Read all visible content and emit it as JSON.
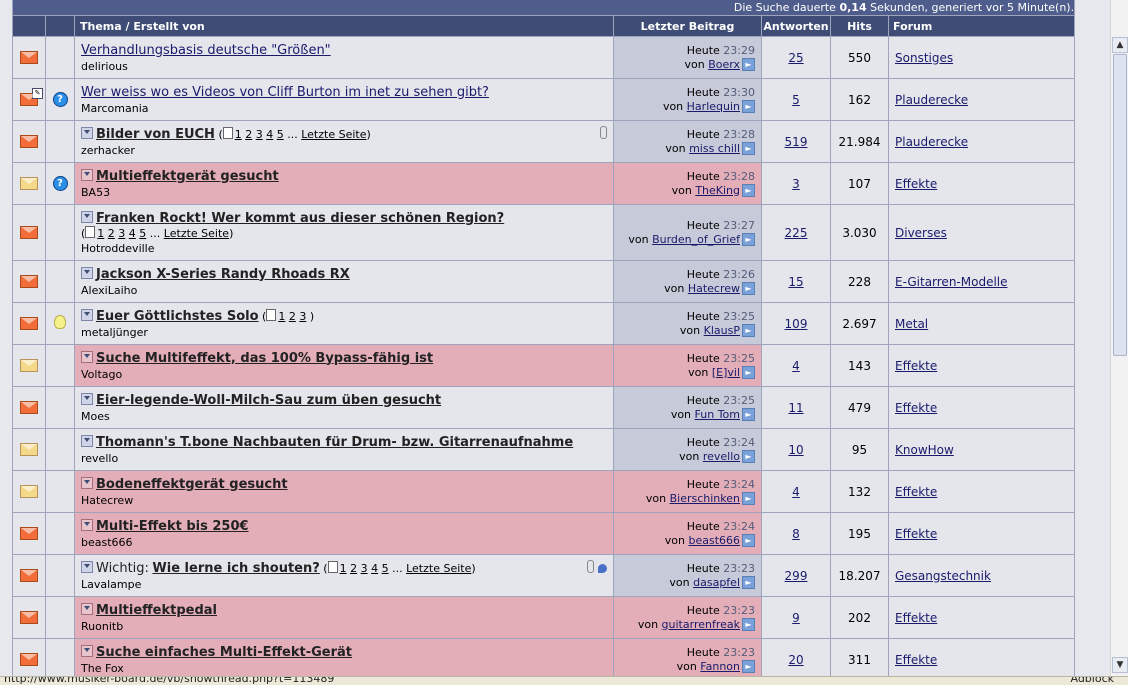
{
  "top_notice": {
    "pre": "Die Suche dauerte",
    "seconds": "0,14",
    "post": "Sekunden, generiert vor 5 Minute(n)."
  },
  "headers": {
    "topic": "Thema / Erstellt von",
    "last_post": "Letzter Beitrag",
    "replies": "Antworten",
    "hits": "Hits",
    "forum": "Forum"
  },
  "last_post_by_prefix": "von",
  "sticky_prefix": "Wichtig:",
  "threads": [
    {
      "icon": "new",
      "flag": "",
      "title": "Verhandlungsbasis deutsche \"Größen\"",
      "bold": false,
      "author": "delirious",
      "pages": [],
      "last_page": "",
      "last_day": "Heute",
      "last_time": "23:29",
      "last_user": "Boerx",
      "replies": "25",
      "hits": "550",
      "forum": "Sonstiges",
      "mod": false
    },
    {
      "icon": "new-edited",
      "flag": "question",
      "title": "Wer weiss wo es Videos von Cliff Burton im inet zu sehen gibt?",
      "bold": false,
      "author": "Marcomania",
      "pages": [],
      "last_page": "",
      "last_day": "Heute",
      "last_time": "23:30",
      "last_user": "Harlequin",
      "replies": "5",
      "hits": "162",
      "forum": "Plauderecke",
      "mod": false
    },
    {
      "icon": "new",
      "flag": "",
      "title": "Bilder von EUCH",
      "bold": true,
      "author": "zerhacker",
      "pages": [
        "1",
        "2",
        "3",
        "4",
        "5"
      ],
      "last_page": "Letzte Seite",
      "last_day": "Heute",
      "last_time": "23:28",
      "last_user": "miss chill",
      "replies": "519",
      "hits": "21.984",
      "forum": "Plauderecke",
      "mod": false,
      "attach": true
    },
    {
      "icon": "read",
      "flag": "question",
      "title": "Multieffektgerät gesucht",
      "bold": true,
      "author": "BA53",
      "pages": [],
      "last_page": "",
      "last_day": "Heute",
      "last_time": "23:28",
      "last_user": "TheKing",
      "replies": "3",
      "hits": "107",
      "forum": "Effekte",
      "mod": true
    },
    {
      "icon": "new",
      "flag": "",
      "title": "Franken Rockt! Wer kommt aus dieser schönen Region?",
      "bold": true,
      "author": "Hotroddeville",
      "pages": [
        "1",
        "2",
        "3",
        "4",
        "5"
      ],
      "last_page": "Letzte Seite",
      "last_day": "Heute",
      "last_time": "23:27",
      "last_user": "Burden_of_Grief",
      "replies": "225",
      "hits": "3.030",
      "forum": "Diverses",
      "mod": false,
      "two_line": true
    },
    {
      "icon": "new",
      "flag": "",
      "title": "Jackson X-Series Randy Rhoads RX",
      "bold": true,
      "author": "AlexiLaiho",
      "pages": [],
      "last_page": "",
      "last_day": "Heute",
      "last_time": "23:26",
      "last_user": "Hatecrew",
      "replies": "15",
      "hits": "228",
      "forum": "E-Gitarren-Modelle",
      "mod": false
    },
    {
      "icon": "new",
      "flag": "bulb",
      "title": "Euer Göttlichstes Solo",
      "bold": true,
      "author": "metaljünger",
      "pages": [
        "1",
        "2",
        "3"
      ],
      "last_page": "",
      "last_day": "Heute",
      "last_time": "23:25",
      "last_user": "KlausP",
      "replies": "109",
      "hits": "2.697",
      "forum": "Metal",
      "mod": false
    },
    {
      "icon": "read",
      "flag": "",
      "title": "Suche Multifeffekt, das 100% Bypass-fähig ist",
      "bold": true,
      "author": "Voltago",
      "pages": [],
      "last_page": "",
      "last_day": "Heute",
      "last_time": "23:25",
      "last_user": "[E]vil",
      "replies": "4",
      "hits": "143",
      "forum": "Effekte",
      "mod": true
    },
    {
      "icon": "new",
      "flag": "",
      "title": "Eier-legende-Woll-Milch-Sau zum üben gesucht",
      "bold": true,
      "author": "Moes",
      "pages": [],
      "last_page": "",
      "last_day": "Heute",
      "last_time": "23:25",
      "last_user": "Fun Tom",
      "replies": "11",
      "hits": "479",
      "forum": "Effekte",
      "mod": false
    },
    {
      "icon": "read",
      "flag": "",
      "title": "Thomann's T.bone Nachbauten für Drum- bzw. Gitarrenaufnahme",
      "bold": true,
      "author": "revello",
      "pages": [],
      "last_page": "",
      "last_day": "Heute",
      "last_time": "23:24",
      "last_user": "revello",
      "replies": "10",
      "hits": "95",
      "forum": "KnowHow",
      "mod": false
    },
    {
      "icon": "read",
      "flag": "",
      "title": "Bodeneffektgerät gesucht",
      "bold": true,
      "author": "Hatecrew",
      "pages": [],
      "last_page": "",
      "last_day": "Heute",
      "last_time": "23:24",
      "last_user": "Bierschinken",
      "replies": "4",
      "hits": "132",
      "forum": "Effekte",
      "mod": true
    },
    {
      "icon": "new",
      "flag": "",
      "title": "Multi-Effekt bis 250€",
      "bold": true,
      "author": "beast666",
      "pages": [],
      "last_page": "",
      "last_day": "Heute",
      "last_time": "23:24",
      "last_user": "beast666",
      "replies": "8",
      "hits": "195",
      "forum": "Effekte",
      "mod": true
    },
    {
      "icon": "new",
      "flag": "",
      "title": "Wie lerne ich shouten?",
      "bold": true,
      "sticky": true,
      "author": "Lavalampe",
      "pages": [
        "1",
        "2",
        "3",
        "4",
        "5"
      ],
      "last_page": "Letzte Seite",
      "last_day": "Heute",
      "last_time": "23:23",
      "last_user": "dasapfel",
      "replies": "299",
      "hits": "18.207",
      "forum": "Gesangstechnik",
      "mod": false,
      "attach": true,
      "pinned": true
    },
    {
      "icon": "new",
      "flag": "",
      "title": "Multieffektpedal",
      "bold": true,
      "author": "Ruonitb",
      "pages": [],
      "last_page": "",
      "last_day": "Heute",
      "last_time": "23:23",
      "last_user": "guitarrenfreak",
      "replies": "9",
      "hits": "202",
      "forum": "Effekte",
      "mod": true
    },
    {
      "icon": "new",
      "flag": "",
      "title": "Suche einfaches Multi-Effekt-Gerät",
      "bold": true,
      "author": "The Fox",
      "pages": [],
      "last_page": "",
      "last_day": "Heute",
      "last_time": "23:23",
      "last_user": "Fannon",
      "replies": "20",
      "hits": "311",
      "forum": "Effekte",
      "mod": true
    }
  ],
  "status": {
    "url": "http://www.musiker-board.de/vb/showthread.php?t=113489",
    "adblock": "Adblock"
  },
  "colors": {
    "header_bg": "#3f4c76",
    "row_bg": "#e4e6ec",
    "last_post_bg": "#c7cbd9",
    "moderated_bg": "#e3aeb8",
    "link": "#1a1a6b"
  }
}
